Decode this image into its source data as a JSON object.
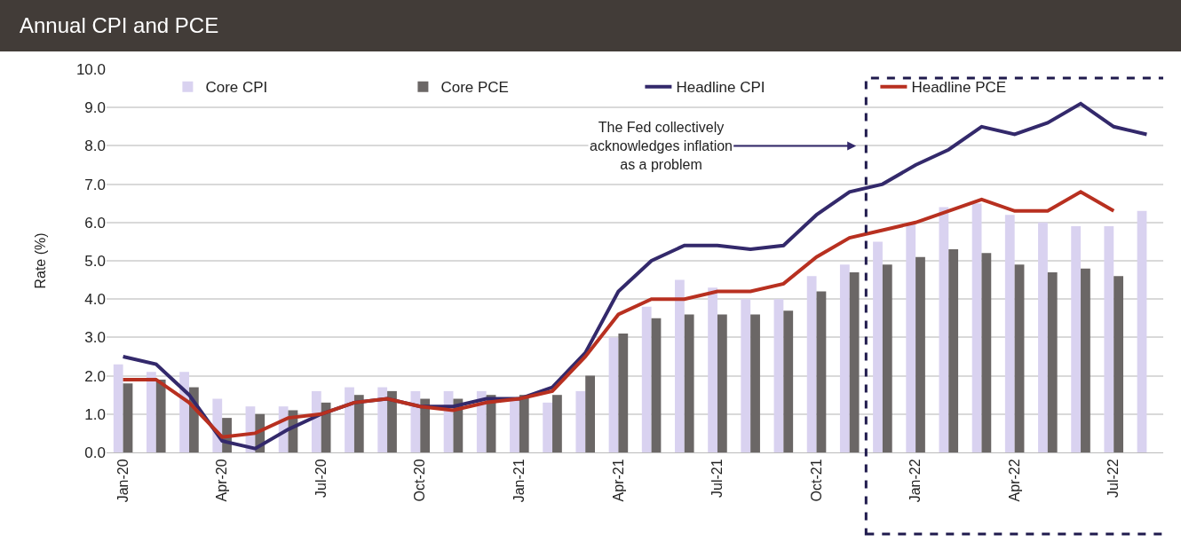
{
  "chart_data": {
    "type": "bar",
    "title": "Annual CPI and PCE",
    "ylabel": "Rate (%)",
    "categories": [
      "Jan-20",
      null,
      null,
      "Apr-20",
      null,
      null,
      "Jul-20",
      null,
      null,
      "Oct-20",
      null,
      null,
      "Jan-21",
      null,
      null,
      "Apr-21",
      null,
      null,
      "Jul-21",
      null,
      null,
      "Oct-21",
      null,
      null,
      "Jan-22",
      null,
      null,
      "Apr-22",
      null,
      null,
      "Jul-22",
      null
    ],
    "series": [
      {
        "name": "Core CPI",
        "color": "#d9d2f0",
        "values": [
          2.3,
          2.1,
          2.1,
          1.4,
          1.2,
          1.2,
          1.6,
          1.7,
          1.7,
          1.6,
          1.6,
          1.6,
          1.4,
          1.3,
          1.6,
          3.0,
          3.8,
          4.5,
          4.3,
          4.0,
          4.0,
          4.6,
          4.9,
          5.5,
          6.0,
          6.4,
          6.5,
          6.2,
          6.0,
          5.9,
          5.9,
          6.3
        ]
      },
      {
        "name": "Core PCE",
        "color": "#6b6766",
        "values": [
          1.8,
          1.9,
          1.7,
          0.9,
          1.0,
          1.1,
          1.3,
          1.5,
          1.6,
          1.4,
          1.4,
          1.5,
          1.5,
          1.5,
          2.0,
          3.1,
          3.5,
          3.6,
          3.6,
          3.6,
          3.7,
          4.2,
          4.7,
          4.9,
          5.1,
          5.3,
          5.2,
          4.9,
          4.7,
          4.8,
          4.6,
          null
        ]
      },
      {
        "name": "Headline CPI",
        "type": "line",
        "color": "#33296b",
        "values": [
          2.5,
          2.3,
          1.5,
          0.3,
          0.1,
          0.6,
          1.0,
          1.3,
          1.4,
          1.2,
          1.2,
          1.4,
          1.4,
          1.7,
          2.6,
          4.2,
          5.0,
          5.4,
          5.4,
          5.3,
          5.4,
          6.2,
          6.8,
          7.0,
          7.5,
          7.9,
          8.5,
          8.3,
          8.6,
          9.1,
          8.5,
          8.3
        ]
      },
      {
        "name": "Headline PCE",
        "type": "line",
        "color": "#b83020",
        "values": [
          1.9,
          1.9,
          1.3,
          0.4,
          0.5,
          0.9,
          1.0,
          1.3,
          1.4,
          1.2,
          1.1,
          1.3,
          1.4,
          1.6,
          2.5,
          3.6,
          4.0,
          4.0,
          4.2,
          4.2,
          4.4,
          5.1,
          5.6,
          5.8,
          6.0,
          6.3,
          6.6,
          6.3,
          6.3,
          6.8,
          6.3,
          null
        ]
      }
    ],
    "ylim": [
      0,
      10
    ],
    "yticks": [
      {
        "value": 0,
        "label": "0.0"
      },
      {
        "value": 1,
        "label": "1.0"
      },
      {
        "value": 2,
        "label": "2.0"
      },
      {
        "value": 3,
        "label": "3.0"
      },
      {
        "value": 4,
        "label": "4.0"
      },
      {
        "value": 5,
        "label": "5.0"
      },
      {
        "value": 6,
        "label": "6.0"
      },
      {
        "value": 7,
        "label": "7.0"
      },
      {
        "value": 8,
        "label": "8.0"
      },
      {
        "value": 9,
        "label": "9.0"
      },
      {
        "value": 10,
        "label": "10.0"
      }
    ],
    "annotations": [
      "The Fed collectively acknowledges inflation as a problem"
    ],
    "grid": "y",
    "legend": "top",
    "line_style": "solid",
    "marker": "none"
  }
}
